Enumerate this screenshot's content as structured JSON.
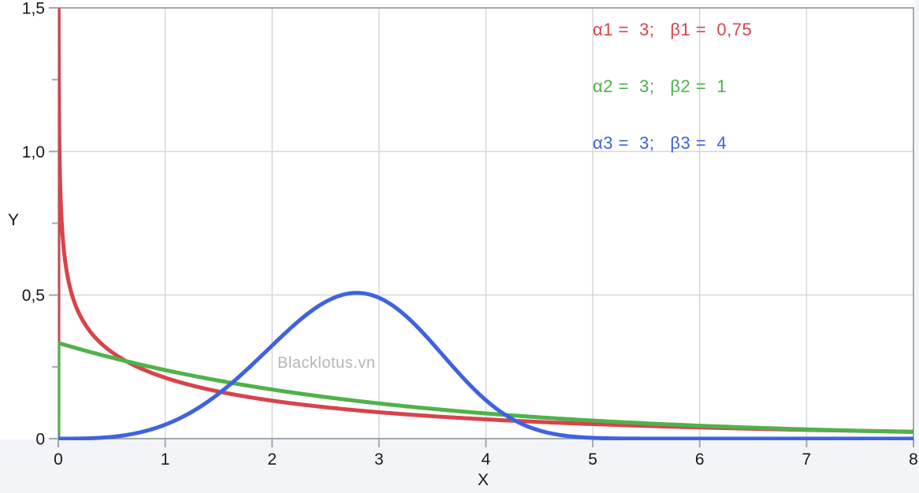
{
  "chart_data": {
    "type": "line",
    "title": "",
    "xlabel": "X",
    "ylabel": "Y",
    "xlim": [
      0,
      8
    ],
    "ylim": [
      0,
      1.5
    ],
    "x_ticks": {
      "values": [
        0,
        1,
        2,
        3,
        4,
        5,
        6,
        7,
        8
      ],
      "labels": [
        "0",
        "1",
        "2",
        "3",
        "4",
        "5",
        "6",
        "7",
        "8"
      ]
    },
    "y_ticks": {
      "values": [
        0,
        0.5,
        1.0,
        1.5
      ],
      "labels": [
        "0",
        "0,5",
        "1,0",
        "1,5"
      ],
      "minor_values": [
        0.25,
        0.75,
        1.25
      ]
    },
    "grid": {
      "vertical_at_x": [
        1,
        2,
        3,
        4,
        5,
        6,
        7
      ],
      "horizontal_at_y": [
        0.5,
        1.0
      ],
      "style": "light-gray"
    },
    "model": "Weibull probability density: f(x) = (beta/alpha)*(x/alpha)^(beta-1)*exp(-(x/alpha)^beta)",
    "series": [
      {
        "label": "α1 =  3;   β1 =  0,75",
        "alpha": 3,
        "beta": 0.75,
        "color": "#d8434c",
        "key_points": {
          "start": "diverges at x→0 (clipped at y=1.5)",
          "f_at_1": 0.21,
          "f_at_8": 0.024
        }
      },
      {
        "label": "α2 =  3;   β2 =  1",
        "alpha": 3,
        "beta": 1,
        "color": "#4fb24a",
        "key_points": {
          "f_at_0": 0.333,
          "f_at_8": 0.023
        }
      },
      {
        "label": "α3 =  3;   β3 =  4",
        "alpha": 3,
        "beta": 4,
        "color": "#3e62e0",
        "key_points": {
          "f_at_0": 0,
          "peak_x": 2.79,
          "peak_y": 0.51,
          "near_zero_after_x": 5
        }
      }
    ],
    "legend_position": "top-right",
    "watermark": "Blacklotus.vn",
    "colors": {
      "frame_and_ticks": "#a3a6aa",
      "gridline": "#d6d7d9",
      "tick_label": "#17181a",
      "margin_band": "#f3f4f7",
      "watermark": "#b5b5b7"
    }
  }
}
